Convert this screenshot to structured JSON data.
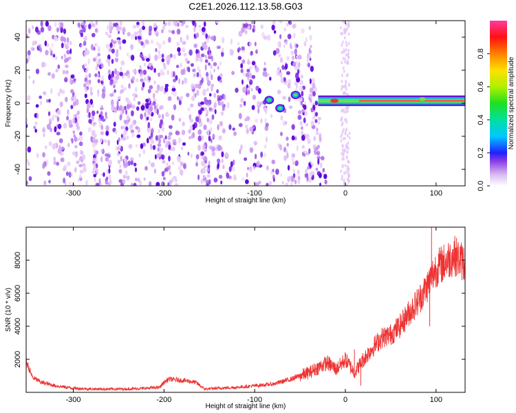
{
  "title": "C2E1.2026.112.13.58.G03",
  "chart_data": [
    {
      "type": "heatmap",
      "xlabel": "Height of straight line (km)",
      "ylabel": "Frequency (Hz)",
      "xlim": [
        -352,
        132
      ],
      "ylim": [
        -50,
        50
      ],
      "x_ticks": [
        -300,
        -200,
        -100,
        0,
        100
      ],
      "y_ticks": [
        -40,
        -20,
        0,
        20,
        40
      ],
      "colorbar": {
        "label": "Normalized spectral amplitude",
        "range": [
          0,
          1
        ],
        "ticks": [
          0.0,
          0.2,
          0.4,
          0.6,
          0.8
        ]
      },
      "features": [
        {
          "label": "carrier line",
          "x_range": [
            -30,
            132
          ],
          "frequency": 1.5,
          "amplitude": 0.85
        },
        {
          "label": "strong blob",
          "x": -72,
          "frequency": -3,
          "amplitude": 0.5
        },
        {
          "label": "strong blob",
          "x": -55,
          "frequency": 5,
          "amplitude": 0.45
        },
        {
          "label": "strong blob",
          "x": -84,
          "frequency": 2,
          "amplitude": 0.3
        }
      ]
    },
    {
      "type": "line",
      "xlabel": "Height of straight line (km)",
      "ylabel": "SNR (10 * v/v)",
      "xlim": [
        -352,
        132
      ],
      "ylim": [
        0,
        10000
      ],
      "x_ticks": [
        -300,
        -200,
        -100,
        0,
        100
      ],
      "y_ticks": [
        2000,
        4000,
        6000,
        8000
      ],
      "color": "#ee3333",
      "series": [
        {
          "x": [
            -352,
            -345,
            -335,
            -320,
            -300,
            -280,
            -260,
            -240,
            -220,
            -205,
            -200,
            -195,
            -185,
            -175,
            -165,
            -155,
            -140,
            -120,
            -100,
            -80,
            -60,
            -40,
            -30,
            -20,
            -10,
            0,
            10,
            20,
            30,
            40,
            50,
            60,
            70,
            80,
            90,
            95,
            100,
            110,
            120,
            132
          ],
          "values": [
            1900,
            900,
            600,
            400,
            250,
            200,
            200,
            200,
            250,
            300,
            600,
            800,
            750,
            700,
            600,
            200,
            250,
            300,
            400,
            500,
            800,
            1200,
            1500,
            1800,
            1400,
            2000,
            1200,
            2000,
            2700,
            3300,
            3500,
            4000,
            4800,
            5500,
            6400,
            7000,
            7500,
            7900,
            8300,
            7800
          ]
        }
      ]
    }
  ]
}
